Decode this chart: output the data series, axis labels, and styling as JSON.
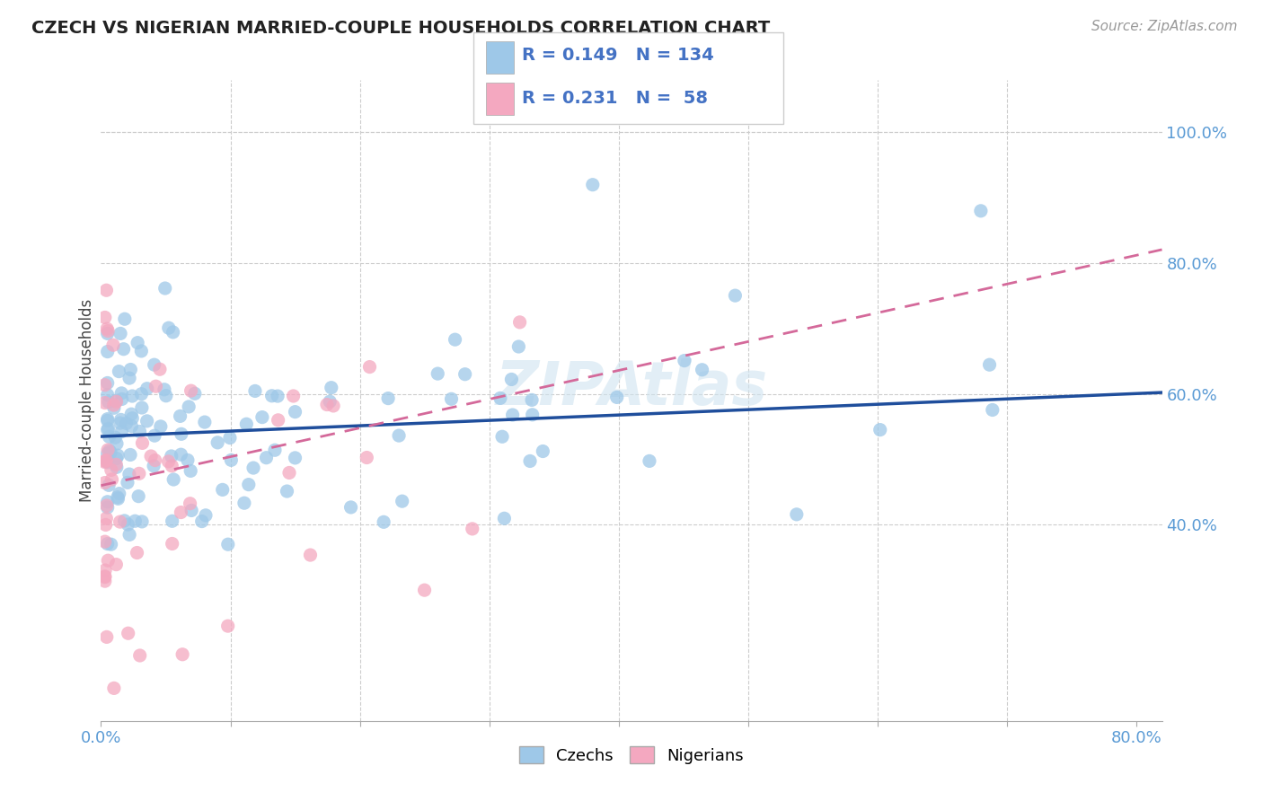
{
  "title": "CZECH VS NIGERIAN MARRIED-COUPLE HOUSEHOLDS CORRELATION CHART",
  "source": "Source: ZipAtlas.com",
  "ylabel": "Married-couple Households",
  "xlim": [
    0.0,
    0.82
  ],
  "ylim": [
    0.1,
    1.08
  ],
  "czech_color": "#9ec8e8",
  "nigerian_color": "#f4a8c0",
  "czech_line_color": "#1f4e9c",
  "nigerian_line_color": "#d4699a",
  "R_czech": 0.149,
  "N_czech": 134,
  "R_nigerian": 0.231,
  "N_nigerian": 58,
  "watermark": "ZIPAtlas",
  "czech_intercept": 0.535,
  "czech_slope": 0.082,
  "nigerian_intercept": 0.46,
  "nigerian_slope": 0.44,
  "seed": 77
}
